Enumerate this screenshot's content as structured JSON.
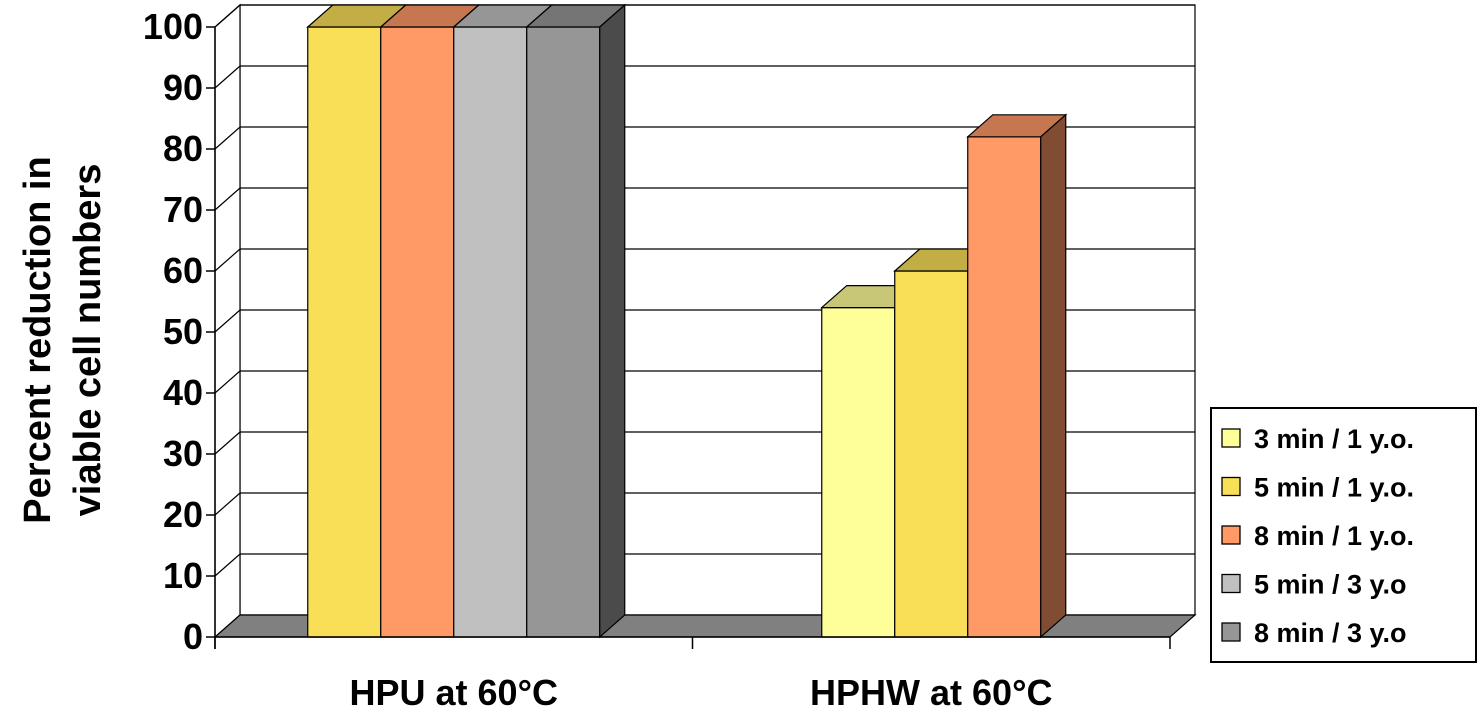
{
  "chart_data": {
    "type": "bar",
    "ylabel_lines": [
      "Percent reduction in",
      "viable cell numbers"
    ],
    "xlabel": "",
    "ylim": [
      0,
      100
    ],
    "yticks": [
      "0",
      "10",
      "20",
      "30",
      "40",
      "50",
      "60",
      "70",
      "80",
      "90",
      "100"
    ],
    "categories": [
      "HPU at 60°C",
      "HPHW at 60°C"
    ],
    "series": [
      {
        "name": "3 min / 1 y.o.",
        "color": "#FFFF99",
        "values": [
          null,
          54
        ]
      },
      {
        "name": "5 min / 1 y.o.",
        "color": "#F9DF57",
        "values": [
          100,
          60
        ]
      },
      {
        "name": "8 min / 1 y.o.",
        "color": "#FF9966",
        "values": [
          100,
          82
        ]
      },
      {
        "name": "5 min / 3 y.o",
        "color": "#C0C0C0",
        "values": [
          100,
          null
        ]
      },
      {
        "name": "8 min / 3 y.o",
        "color": "#969696",
        "values": [
          100,
          null
        ]
      }
    ],
    "legend_position": "right",
    "grid": true,
    "style": "3d-column"
  }
}
